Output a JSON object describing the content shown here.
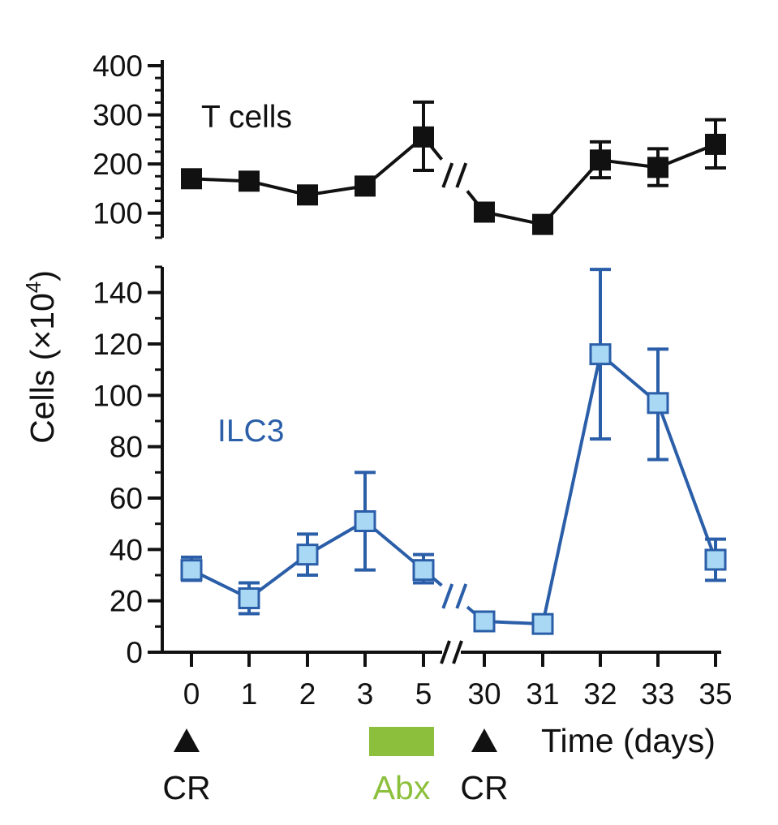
{
  "colors": {
    "tcells": "#111111",
    "ilc3_line": "#2a5ea8",
    "ilc3_fill": "#a9d8f5",
    "abx": "#8cc03c",
    "axis": "#111111"
  },
  "chart_data": [
    {
      "type": "line",
      "ylim": [
        50,
        400
      ],
      "yticks": [
        "100",
        "200",
        "300",
        "400"
      ],
      "grid": false,
      "categories": [
        "0",
        "1",
        "2",
        "3",
        "5",
        "30",
        "31",
        "32",
        "33",
        "35"
      ],
      "series": [
        {
          "name": "T cells",
          "values": [
            170,
            165,
            137,
            155,
            255,
            102,
            77,
            208,
            193,
            240
          ],
          "err_low": [
            170,
            165,
            137,
            155,
            187,
            102,
            77,
            172,
            156,
            192
          ],
          "err_high": [
            170,
            165,
            137,
            155,
            326,
            102,
            77,
            245,
            231,
            290
          ]
        }
      ]
    },
    {
      "type": "line",
      "ylim": [
        0,
        150
      ],
      "yticks": [
        "0",
        "20",
        "40",
        "60",
        "80",
        "100",
        "120",
        "140"
      ],
      "grid": false,
      "ylabel": "Cells (×10",
      "ylabel_sup": "4",
      "ylabel_end": ")",
      "xlabel": "Time (days)",
      "categories": [
        "0",
        "1",
        "2",
        "3",
        "5",
        "30",
        "31",
        "32",
        "33",
        "35"
      ],
      "series": [
        {
          "name": "ILC3",
          "values": [
            32,
            21,
            38,
            51,
            32,
            12,
            11,
            116,
            97,
            36
          ],
          "err_low": [
            28,
            15,
            30,
            32,
            27,
            12,
            11,
            83,
            75,
            28
          ],
          "err_high": [
            37,
            27,
            46,
            70,
            38,
            12,
            11,
            149,
            118,
            44
          ]
        }
      ]
    }
  ],
  "annotations": {
    "cr1": "CR",
    "cr2": "CR",
    "abx": "Abx"
  }
}
